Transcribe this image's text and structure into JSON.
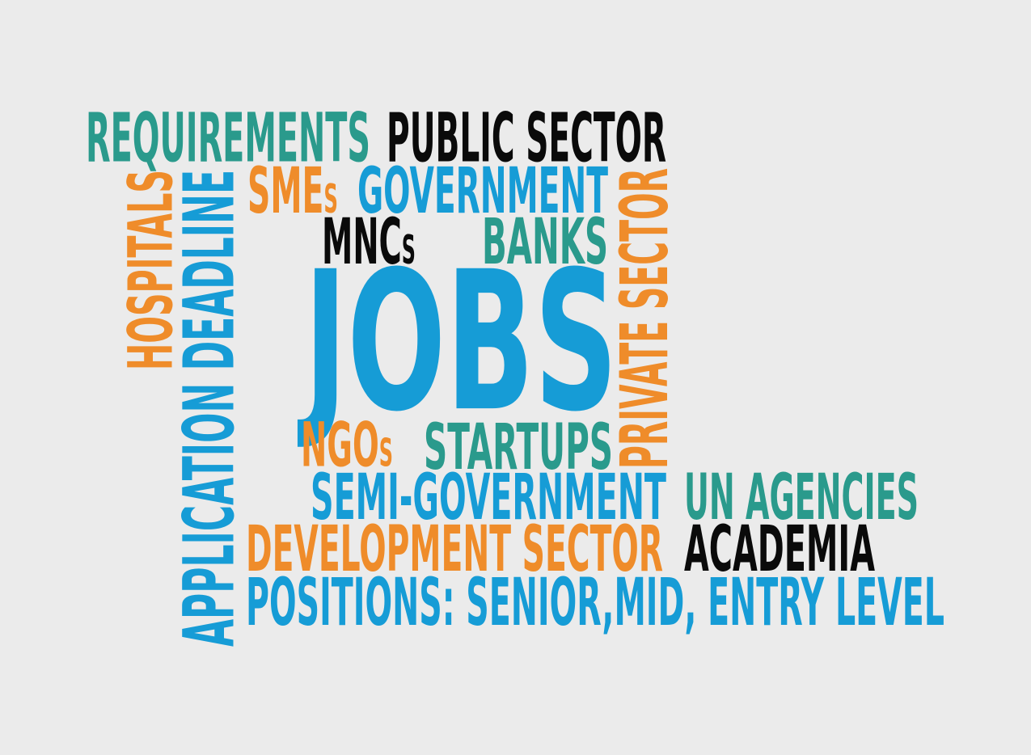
{
  "colors": {
    "background": "#ebebeb",
    "teal": "#2a9a8c",
    "black": "#0a0a0a",
    "orange": "#ef8c2a",
    "blue": "#169cd6"
  },
  "words": {
    "requirements": "REQUIREMENTS",
    "public_sector": "PUBLIC SECTOR",
    "hospitals": "HOSPITALS",
    "application_deadline": "APPLICATION DEADLINE",
    "smes_main": "SME",
    "smes_suffix": "s",
    "government": "GOVERNMENT",
    "private_sector": "PRIVATE SECTOR",
    "mncs_main": "MNC",
    "mncs_suffix": "s",
    "banks": "BANKS",
    "jobs": "JOBS",
    "ngos_main": "NGO",
    "ngos_suffix": "s",
    "startups": "STARTUPS",
    "semi_government": "SEMI-GOVERNMENT",
    "un_agencies": "UN AGENCIES",
    "development_sector": "DEVELOPMENT SECTOR",
    "academia": "ACADEMIA",
    "positions": "POSITIONS: SENIOR,MID, ENTRY LEVEL"
  }
}
